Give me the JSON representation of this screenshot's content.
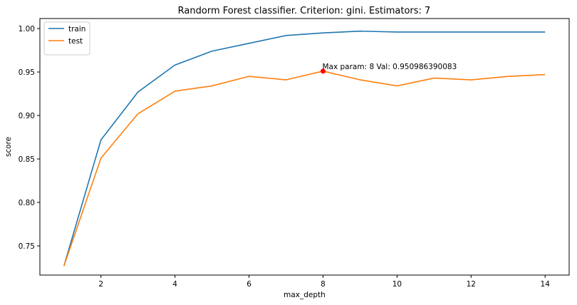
{
  "chart_data": {
    "type": "line",
    "title": "Randorm Forest classifier. Criterion: gini. Estimators: 7",
    "xlabel": "max_depth",
    "ylabel": "score",
    "xlim": [
      0.35,
      14.65
    ],
    "ylim": [
      0.7165,
      1.0115
    ],
    "xticks": [
      2,
      4,
      6,
      8,
      10,
      12,
      14
    ],
    "xtick_labels": [
      "2",
      "4",
      "6",
      "8",
      "10",
      "12",
      "14"
    ],
    "yticks": [
      0.75,
      0.8,
      0.85,
      0.9,
      0.95,
      1.0
    ],
    "ytick_labels": [
      "0.75",
      "0.80",
      "0.85",
      "0.90",
      "0.95",
      "1.00"
    ],
    "grid": false,
    "legend_position": "top-left",
    "x": [
      1,
      2,
      3,
      4,
      5,
      6,
      7,
      8,
      9,
      10,
      11,
      12,
      13,
      14
    ],
    "series": [
      {
        "name": "train",
        "color": "#1f77b4",
        "values": [
          0.727,
          0.872,
          0.927,
          0.958,
          0.974,
          0.983,
          0.992,
          0.995,
          0.997,
          0.996,
          0.996,
          0.996,
          0.996,
          0.996
        ]
      },
      {
        "name": "test",
        "color": "#ff7f0e",
        "values": [
          0.727,
          0.851,
          0.902,
          0.928,
          0.934,
          0.945,
          0.941,
          0.951,
          0.941,
          0.934,
          0.943,
          0.941,
          0.945,
          0.947
        ]
      }
    ],
    "marker": {
      "x": 8,
      "y": 0.950986390083,
      "color": "#ff0000"
    },
    "annotation": "Max param: 8 Val: 0.950986390083"
  }
}
